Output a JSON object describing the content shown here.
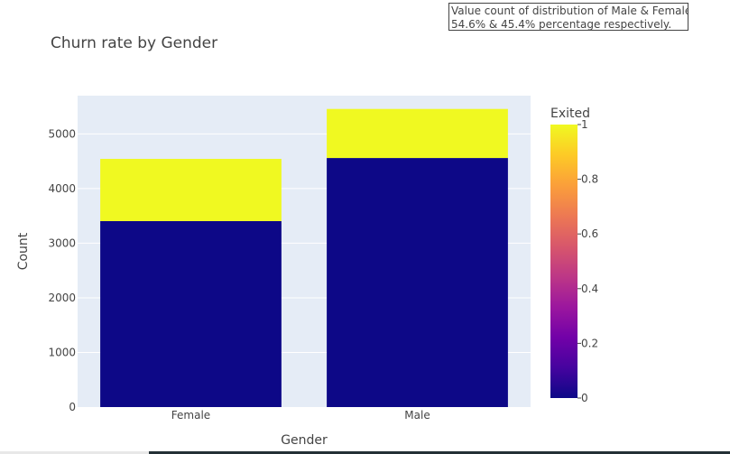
{
  "annotation": {
    "line1": "Value count of distribution of Male & Female are",
    "line2": "54.6% & 45.4% percentage respectively."
  },
  "chart_data": {
    "type": "bar",
    "barmode": "stack",
    "title": "Churn rate by Gender",
    "xlabel": "Gender",
    "ylabel": "Count",
    "categories": [
      "Female",
      "Male"
    ],
    "series": [
      {
        "exited": 0,
        "values": [
          3404,
          4559
        ],
        "color": "#0d0887"
      },
      {
        "exited": 1,
        "values": [
          1139,
          898
        ],
        "color": "#f0f921"
      }
    ],
    "ylim": [
      0,
      5700
    ],
    "yticks": [
      0,
      1000,
      2000,
      3000,
      4000,
      5000
    ],
    "grid": true,
    "plot_bgcolor": "#e5ecf6",
    "colorbar": {
      "title": "Exited",
      "range": [
        0,
        1
      ],
      "ticks": [
        "0",
        "0.2",
        "0.4",
        "0.6",
        "0.8",
        "1"
      ],
      "tick_values": [
        0,
        0.2,
        0.4,
        0.6,
        0.8,
        1
      ],
      "colors": [
        "#0d0887",
        "#46039f",
        "#7201a8",
        "#9c179e",
        "#bd3786",
        "#d8576b",
        "#ed7953",
        "#fb9f3a",
        "#fdca26",
        "#f0f921"
      ]
    }
  }
}
